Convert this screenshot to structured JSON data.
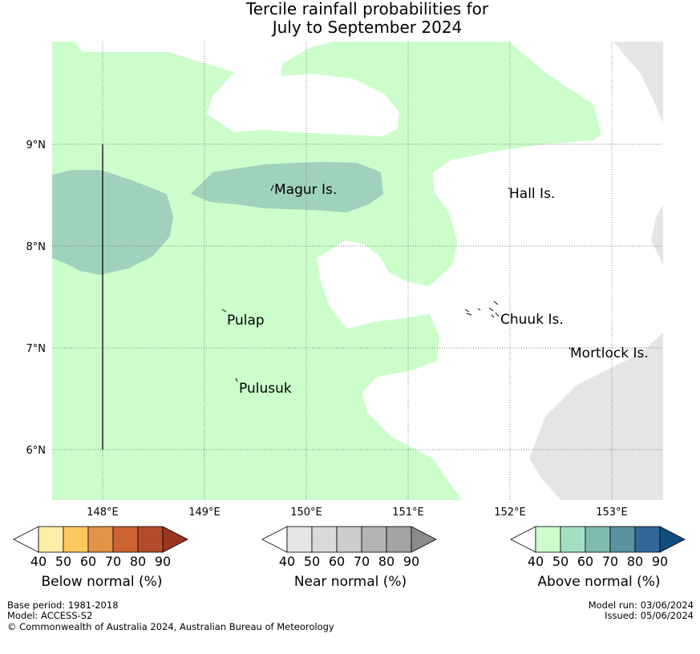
{
  "title": {
    "line1": "Tercile rainfall probabilities for",
    "line2": "July to September 2024"
  },
  "map": {
    "lon_ticks": [
      "148°E",
      "149°E",
      "150°E",
      "151°E",
      "152°E",
      "153°E"
    ],
    "lat_ticks": [
      "9°N",
      "8°N",
      "7°N",
      "6°N"
    ],
    "islands": [
      "Magur Is.",
      "Hall Is.",
      "Pulap",
      "Chuuk Is.",
      "Mortlock Is.",
      "Pulusuk"
    ],
    "colors": {
      "above_40": "#ccfecc",
      "above_50": "#9fd2bd",
      "near_40": "#e5e5e5"
    }
  },
  "legends": [
    {
      "label": "Below normal (%)",
      "ticks": [
        "40",
        "50",
        "60",
        "70",
        "80",
        "90"
      ],
      "colors": [
        "#ffffff",
        "#ffeea5",
        "#fdc860",
        "#e3924a",
        "#cd6332",
        "#b34c2a",
        "#9b3420"
      ]
    },
    {
      "label": "Near normal (%)",
      "ticks": [
        "40",
        "50",
        "60",
        "70",
        "80",
        "90"
      ],
      "colors": [
        "#ffffff",
        "#e5e5e5",
        "#d9d9d9",
        "#cccccc",
        "#b3b3b3",
        "#a3a3a3",
        "#8c8c8c"
      ]
    },
    {
      "label": "Above normal (%)",
      "ticks": [
        "40",
        "50",
        "60",
        "70",
        "80",
        "90"
      ],
      "colors": [
        "#ffffff",
        "#ccfecc",
        "#a5dfc3",
        "#7fbbb1",
        "#5a929f",
        "#31679d",
        "#114e80"
      ]
    }
  ],
  "footer": {
    "base_period": "Base period: 1981-2018",
    "model": "Model: ACCESS-S2",
    "copyright": "© Commonwealth of Australia 2024, Australian Bureau of Meteorology",
    "model_run": "Model run: 03/06/2024",
    "issued": "Issued: 05/06/2024"
  }
}
